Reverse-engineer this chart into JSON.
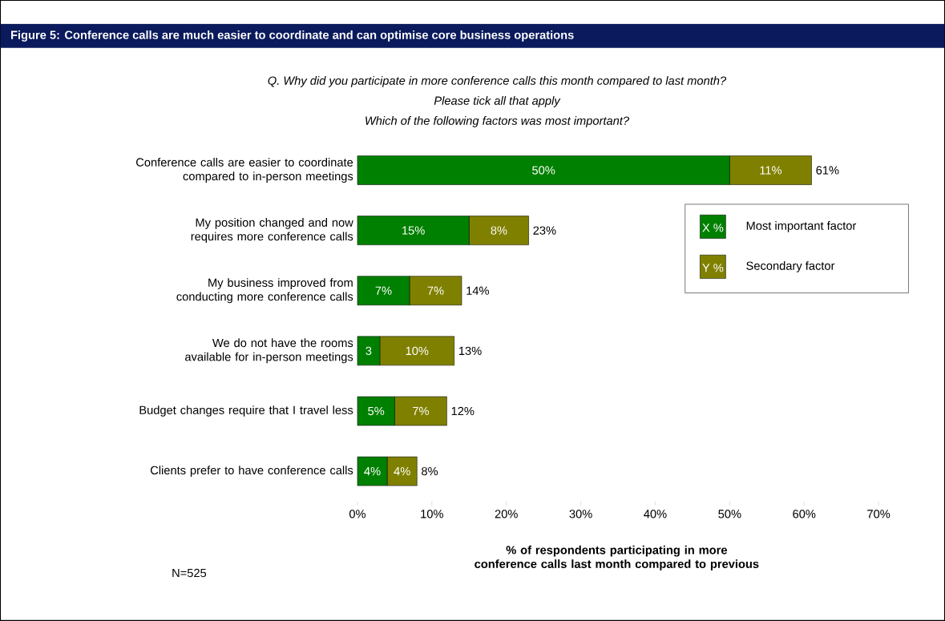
{
  "chart_data": {
    "type": "bar",
    "orientation": "horizontal",
    "stacked": true,
    "title": "Figure 5:     Conference calls are much easier to coordinate and can optimise core business operations",
    "subtitle": "Q. Why did you participate in more conference calls this month compared to last month?",
    "annotations": [
      "Please tick all that apply",
      "Which of the following factors was most important?",
      "N=525",
      "X %",
      "Y %"
    ],
    "xlabel": "% of respondents participating in more conference calls last month compared to previous",
    "categories": [
      "Conference calls are easier to coordinate compared to in-person meetings",
      "My position changed and now requires more conference calls",
      "My business improved from conducting more conference calls",
      "We do not have the rooms available for in-person meetings",
      "Budget changes require that I travel less",
      "Clients prefer to have conference calls"
    ],
    "series": [
      {
        "name": "Most important factor",
        "color": "#008000",
        "values": [
          50,
          15,
          7,
          3,
          5,
          4
        ],
        "value_labels": [
          "50%",
          "15%",
          "7%",
          "3",
          "5%",
          "4%"
        ]
      },
      {
        "name": "Secondary factor",
        "color": "#808000",
        "values": [
          11,
          8,
          7,
          10,
          7,
          4
        ],
        "value_labels": [
          "11%",
          "8%",
          "7%",
          "10%",
          "7%",
          "4%"
        ]
      }
    ],
    "totals": [
      "61%",
      "23%",
      "14%",
      "13%",
      "12%",
      "8%"
    ],
    "xlim": [
      0,
      70
    ],
    "xticks": [
      {
        "value": 0,
        "label": "0%"
      },
      {
        "value": 10,
        "label": "10%"
      },
      {
        "value": 20,
        "label": "20%"
      },
      {
        "value": 30,
        "label": "30%"
      },
      {
        "value": 40,
        "label": "40%"
      },
      {
        "value": 50,
        "label": "50%"
      },
      {
        "value": 60,
        "label": "60%"
      },
      {
        "value": 70,
        "label": "70%"
      }
    ],
    "legend": "right",
    "grid": false
  }
}
